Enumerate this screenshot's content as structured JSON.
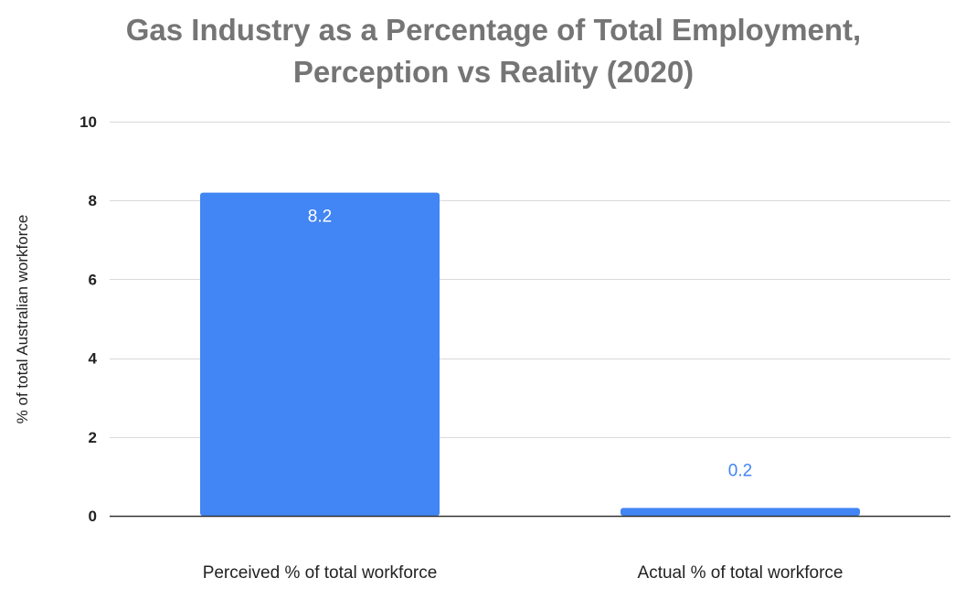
{
  "chart_data": {
    "type": "bar",
    "title": "Gas Industry as a Percentage of Total Employment, Perception vs Reality (2020)",
    "title_lines": [
      "Gas Industry as a Percentage of Total Employment,",
      "Perception vs Reality (2020)"
    ],
    "xlabel": "",
    "ylabel": "% of total Australian workforce",
    "categories": [
      "Perceived % of total workforce",
      "Actual % of total workforce"
    ],
    "values": [
      8.2,
      0.2
    ],
    "data_labels": [
      "8.2",
      "0.2"
    ],
    "ylim": [
      0,
      10
    ],
    "y_ticks": [
      0,
      2,
      4,
      6,
      8,
      10
    ],
    "grid": true,
    "legend": "none",
    "colors": {
      "bar": "#4285f4",
      "grid": "#d9d9d9",
      "axis": "#333333",
      "title": "#757575",
      "label_inside": "#ffffff",
      "label_outside": "#4285f4"
    }
  }
}
